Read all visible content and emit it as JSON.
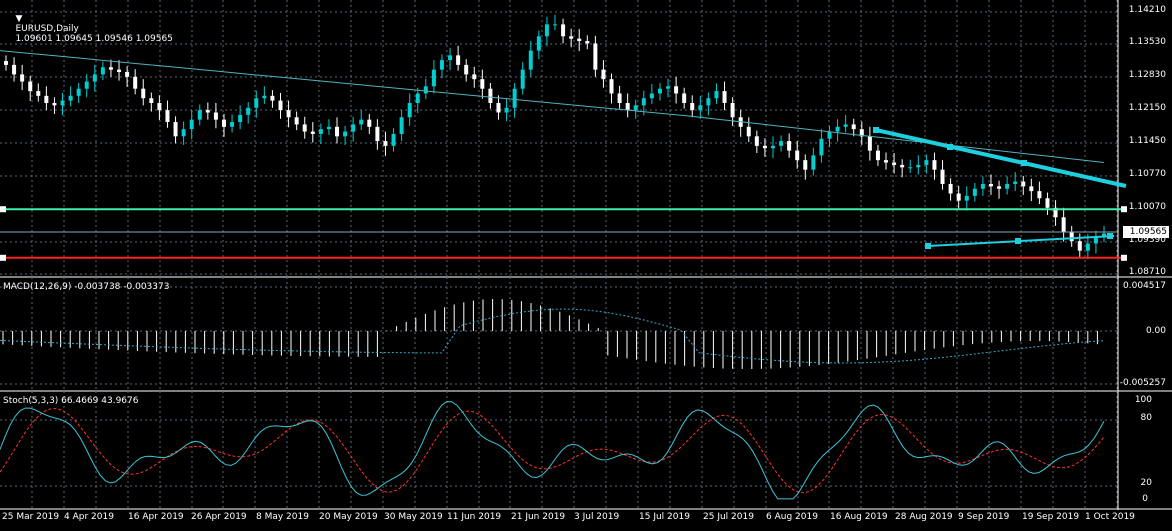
{
  "chart_header": {
    "symbol": "EURUSD,Daily",
    "ohlc": "1.09601 1.09645 1.09546 1.09565"
  },
  "price_axis_labels": [
    "1.14210",
    "1.13530",
    "1.12830",
    "1.12150",
    "1.11450",
    "1.10770",
    "1.10070",
    "1.09390",
    "1.08710"
  ],
  "current_price": "1.09565",
  "macd": {
    "label": "MACD(12,26,9) -0.003738 -0.003373",
    "axis_labels": [
      "0.004517",
      "0.00",
      "-0.005257"
    ]
  },
  "stoch": {
    "label": "Stoch(5,3,3) 66.4669 43.9676",
    "axis_labels": [
      "100",
      "80",
      "20",
      "0"
    ]
  },
  "date_labels": [
    "25 Mar 2019",
    "4 Apr 2019",
    "16 Apr 2019",
    "26 Apr 2019",
    "8 May 2019",
    "20 May 2019",
    "30 May 2019",
    "11 Jun 2019",
    "21 Jun 2019",
    "3 Jul 2019",
    "15 Jul 2019",
    "25 Jul 2019",
    "6 Aug 2019",
    "16 Aug 2019",
    "28 Aug 2019",
    "9 Sep 2019",
    "19 Sep 2019",
    "1 Oct 2019"
  ],
  "colors": {
    "background": "#000000",
    "grid": "#596a7a",
    "candle_up": "#00ced1",
    "candle_down": "#ffffff",
    "moving_average": "#4fb3bd",
    "trendline": "#1ecfe0",
    "support_line": "#3cf0a8",
    "resistance_line": "#ff2020",
    "macd_hist": "#ffffff",
    "macd_signal": "#3aa7c8",
    "stoch_main": "#3cc6d8",
    "stoch_signal": "#ff3030"
  },
  "chart_data": {
    "type": "candlestick",
    "price_range": [
      1.0871,
      1.1421
    ],
    "trend": "downtrend from ~1.133 to ~1.0957 with bounce in late June",
    "horizontal_lines": [
      1.1007,
      1.0905
    ],
    "current": 1.09565
  }
}
